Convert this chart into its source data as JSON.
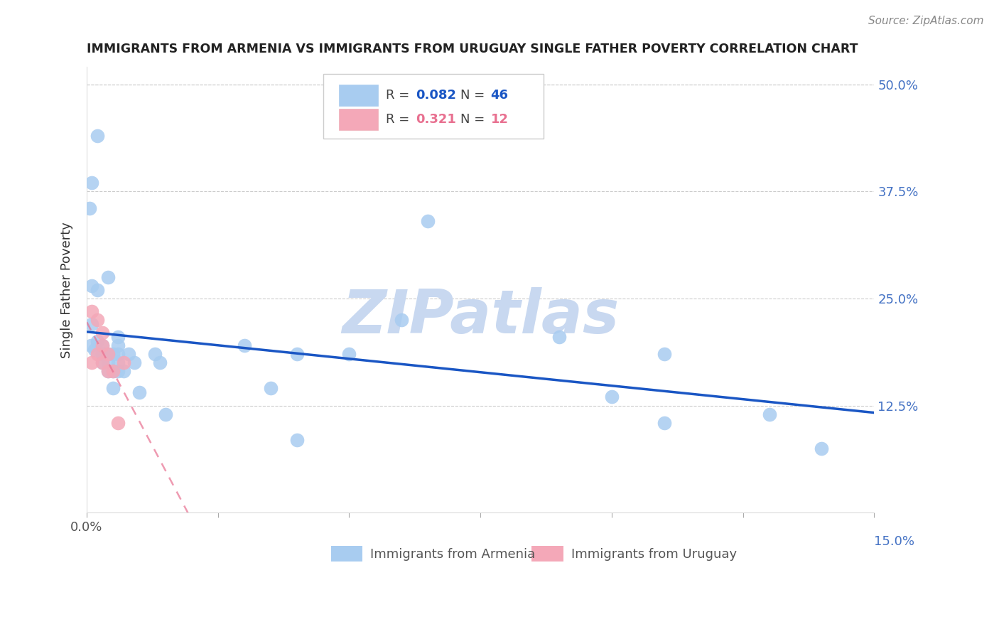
{
  "title": "IMMIGRANTS FROM ARMENIA VS IMMIGRANTS FROM URUGUAY SINGLE FATHER POVERTY CORRELATION CHART",
  "source": "Source: ZipAtlas.com",
  "ylabel": "Single Father Poverty",
  "xlim": [
    0.0,
    0.15
  ],
  "ylim": [
    0.0,
    0.52
  ],
  "armenia_R": "0.082",
  "armenia_N": "46",
  "uruguay_R": "0.321",
  "uruguay_N": "12",
  "armenia_color": "#A8CCF0",
  "uruguay_color": "#F4A8B8",
  "armenia_line_color": "#1A56C4",
  "uruguay_line_color": "#E87090",
  "watermark_color": "#C8D8F0",
  "legend_box_armenia": "#A8CCF0",
  "legend_box_uruguay": "#F4A8B8",
  "armenia_x": [
    0.002,
    0.001,
    0.0005,
    0.001,
    0.001,
    0.0008,
    0.0015,
    0.002,
    0.002,
    0.003,
    0.003,
    0.003,
    0.003,
    0.003,
    0.004,
    0.004,
    0.004,
    0.004,
    0.005,
    0.005,
    0.005,
    0.006,
    0.006,
    0.006,
    0.006,
    0.006,
    0.007,
    0.008,
    0.009,
    0.01,
    0.013,
    0.014,
    0.015,
    0.03,
    0.035,
    0.04,
    0.04,
    0.05,
    0.06,
    0.065,
    0.09,
    0.1,
    0.11,
    0.11,
    0.13,
    0.14
  ],
  "armenia_y": [
    0.44,
    0.385,
    0.355,
    0.265,
    0.22,
    0.195,
    0.19,
    0.26,
    0.2,
    0.185,
    0.185,
    0.195,
    0.185,
    0.175,
    0.275,
    0.185,
    0.175,
    0.165,
    0.185,
    0.165,
    0.145,
    0.205,
    0.195,
    0.185,
    0.175,
    0.165,
    0.165,
    0.185,
    0.175,
    0.14,
    0.185,
    0.175,
    0.115,
    0.195,
    0.145,
    0.185,
    0.085,
    0.185,
    0.225,
    0.34,
    0.205,
    0.135,
    0.105,
    0.185,
    0.115,
    0.075
  ],
  "uruguay_x": [
    0.001,
    0.001,
    0.002,
    0.002,
    0.003,
    0.003,
    0.003,
    0.004,
    0.004,
    0.005,
    0.006,
    0.007
  ],
  "uruguay_y": [
    0.175,
    0.235,
    0.225,
    0.185,
    0.21,
    0.195,
    0.175,
    0.165,
    0.185,
    0.165,
    0.105,
    0.175
  ]
}
